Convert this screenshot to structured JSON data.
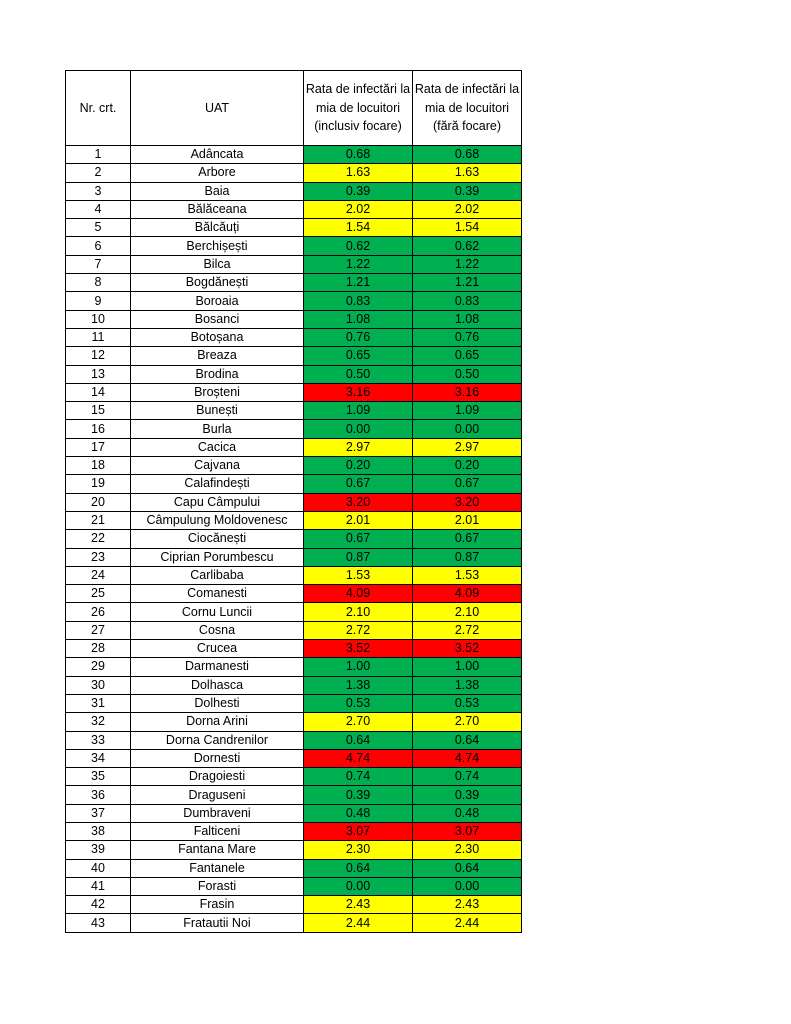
{
  "colors": {
    "green": "#00b050",
    "yellow": "#ffff00",
    "red": "#ff0000"
  },
  "table": {
    "headers": [
      "Nr. crt.",
      "UAT",
      "Rata de infectări la mia de locuitori (inclusiv focare)",
      "Rata de infectări la mia de locuitori (fără focare)"
    ],
    "rows": [
      {
        "nr": "1",
        "uat": "Adâncata",
        "incl": "0.68",
        "fara": "0.68",
        "level": "green"
      },
      {
        "nr": "2",
        "uat": "Arbore",
        "incl": "1.63",
        "fara": "1.63",
        "level": "yellow"
      },
      {
        "nr": "3",
        "uat": "Baia",
        "incl": "0.39",
        "fara": "0.39",
        "level": "green"
      },
      {
        "nr": "4",
        "uat": "Bălăceana",
        "incl": "2.02",
        "fara": "2.02",
        "level": "yellow"
      },
      {
        "nr": "5",
        "uat": "Bălcăuți",
        "incl": "1.54",
        "fara": "1.54",
        "level": "yellow"
      },
      {
        "nr": "6",
        "uat": "Berchișești",
        "incl": "0.62",
        "fara": "0.62",
        "level": "green"
      },
      {
        "nr": "7",
        "uat": "Bilca",
        "incl": "1.22",
        "fara": "1.22",
        "level": "green"
      },
      {
        "nr": "8",
        "uat": "Bogdănești",
        "incl": "1.21",
        "fara": "1.21",
        "level": "green"
      },
      {
        "nr": "9",
        "uat": "Boroaia",
        "incl": "0.83",
        "fara": "0.83",
        "level": "green"
      },
      {
        "nr": "10",
        "uat": "Bosanci",
        "incl": "1.08",
        "fara": "1.08",
        "level": "green"
      },
      {
        "nr": "11",
        "uat": "Botoșana",
        "incl": "0.76",
        "fara": "0.76",
        "level": "green"
      },
      {
        "nr": "12",
        "uat": "Breaza",
        "incl": "0.65",
        "fara": "0.65",
        "level": "green"
      },
      {
        "nr": "13",
        "uat": "Brodina",
        "incl": "0.50",
        "fara": "0.50",
        "level": "green"
      },
      {
        "nr": "14",
        "uat": "Broșteni",
        "incl": "3.16",
        "fara": "3.16",
        "level": "red"
      },
      {
        "nr": "15",
        "uat": "Bunești",
        "incl": "1.09",
        "fara": "1.09",
        "level": "green"
      },
      {
        "nr": "16",
        "uat": "Burla",
        "incl": "0.00",
        "fara": "0.00",
        "level": "green"
      },
      {
        "nr": "17",
        "uat": "Cacica",
        "incl": "2.97",
        "fara": "2.97",
        "level": "yellow"
      },
      {
        "nr": "18",
        "uat": "Cajvana",
        "incl": "0.20",
        "fara": "0.20",
        "level": "green"
      },
      {
        "nr": "19",
        "uat": "Calafindești",
        "incl": "0.67",
        "fara": "0.67",
        "level": "green"
      },
      {
        "nr": "20",
        "uat": "Capu Câmpului",
        "incl": "3.20",
        "fara": "3.20",
        "level": "red"
      },
      {
        "nr": "21",
        "uat": "Câmpulung Moldovenesc",
        "incl": "2.01",
        "fara": "2.01",
        "level": "yellow"
      },
      {
        "nr": "22",
        "uat": "Ciocănești",
        "incl": "0.67",
        "fara": "0.67",
        "level": "green"
      },
      {
        "nr": "23",
        "uat": "Ciprian Porumbescu",
        "incl": "0.87",
        "fara": "0.87",
        "level": "green"
      },
      {
        "nr": "24",
        "uat": "Carlibaba",
        "incl": "1.53",
        "fara": "1.53",
        "level": "yellow"
      },
      {
        "nr": "25",
        "uat": "Comanesti",
        "incl": "4.09",
        "fara": "4.09",
        "level": "red"
      },
      {
        "nr": "26",
        "uat": "Cornu Luncii",
        "incl": "2.10",
        "fara": "2.10",
        "level": "yellow"
      },
      {
        "nr": "27",
        "uat": "Cosna",
        "incl": "2.72",
        "fara": "2.72",
        "level": "yellow"
      },
      {
        "nr": "28",
        "uat": "Crucea",
        "incl": "3.52",
        "fara": "3.52",
        "level": "red"
      },
      {
        "nr": "29",
        "uat": "Darmanesti",
        "incl": "1.00",
        "fara": "1.00",
        "level": "green"
      },
      {
        "nr": "30",
        "uat": "Dolhasca",
        "incl": "1.38",
        "fara": "1.38",
        "level": "green"
      },
      {
        "nr": "31",
        "uat": "Dolhesti",
        "incl": "0.53",
        "fara": "0.53",
        "level": "green"
      },
      {
        "nr": "32",
        "uat": "Dorna Arini",
        "incl": "2.70",
        "fara": "2.70",
        "level": "yellow"
      },
      {
        "nr": "33",
        "uat": "Dorna Candrenilor",
        "incl": "0.64",
        "fara": "0.64",
        "level": "green"
      },
      {
        "nr": "34",
        "uat": "Dornesti",
        "incl": "4.74",
        "fara": "4.74",
        "level": "red"
      },
      {
        "nr": "35",
        "uat": "Dragoiesti",
        "incl": "0.74",
        "fara": "0.74",
        "level": "green"
      },
      {
        "nr": "36",
        "uat": "Draguseni",
        "incl": "0.39",
        "fara": "0.39",
        "level": "green"
      },
      {
        "nr": "37",
        "uat": "Dumbraveni",
        "incl": "0.48",
        "fara": "0.48",
        "level": "green"
      },
      {
        "nr": "38",
        "uat": "Falticeni",
        "incl": "3.07",
        "fara": "3.07",
        "level": "red"
      },
      {
        "nr": "39",
        "uat": "Fantana Mare",
        "incl": "2.30",
        "fara": "2.30",
        "level": "yellow"
      },
      {
        "nr": "40",
        "uat": "Fantanele",
        "incl": "0.64",
        "fara": "0.64",
        "level": "green"
      },
      {
        "nr": "41",
        "uat": "Forasti",
        "incl": "0.00",
        "fara": "0.00",
        "level": "green"
      },
      {
        "nr": "42",
        "uat": "Frasin",
        "incl": "2.43",
        "fara": "2.43",
        "level": "yellow"
      },
      {
        "nr": "43",
        "uat": "Fratautii Noi",
        "incl": "2.44",
        "fara": "2.44",
        "level": "yellow"
      }
    ]
  }
}
